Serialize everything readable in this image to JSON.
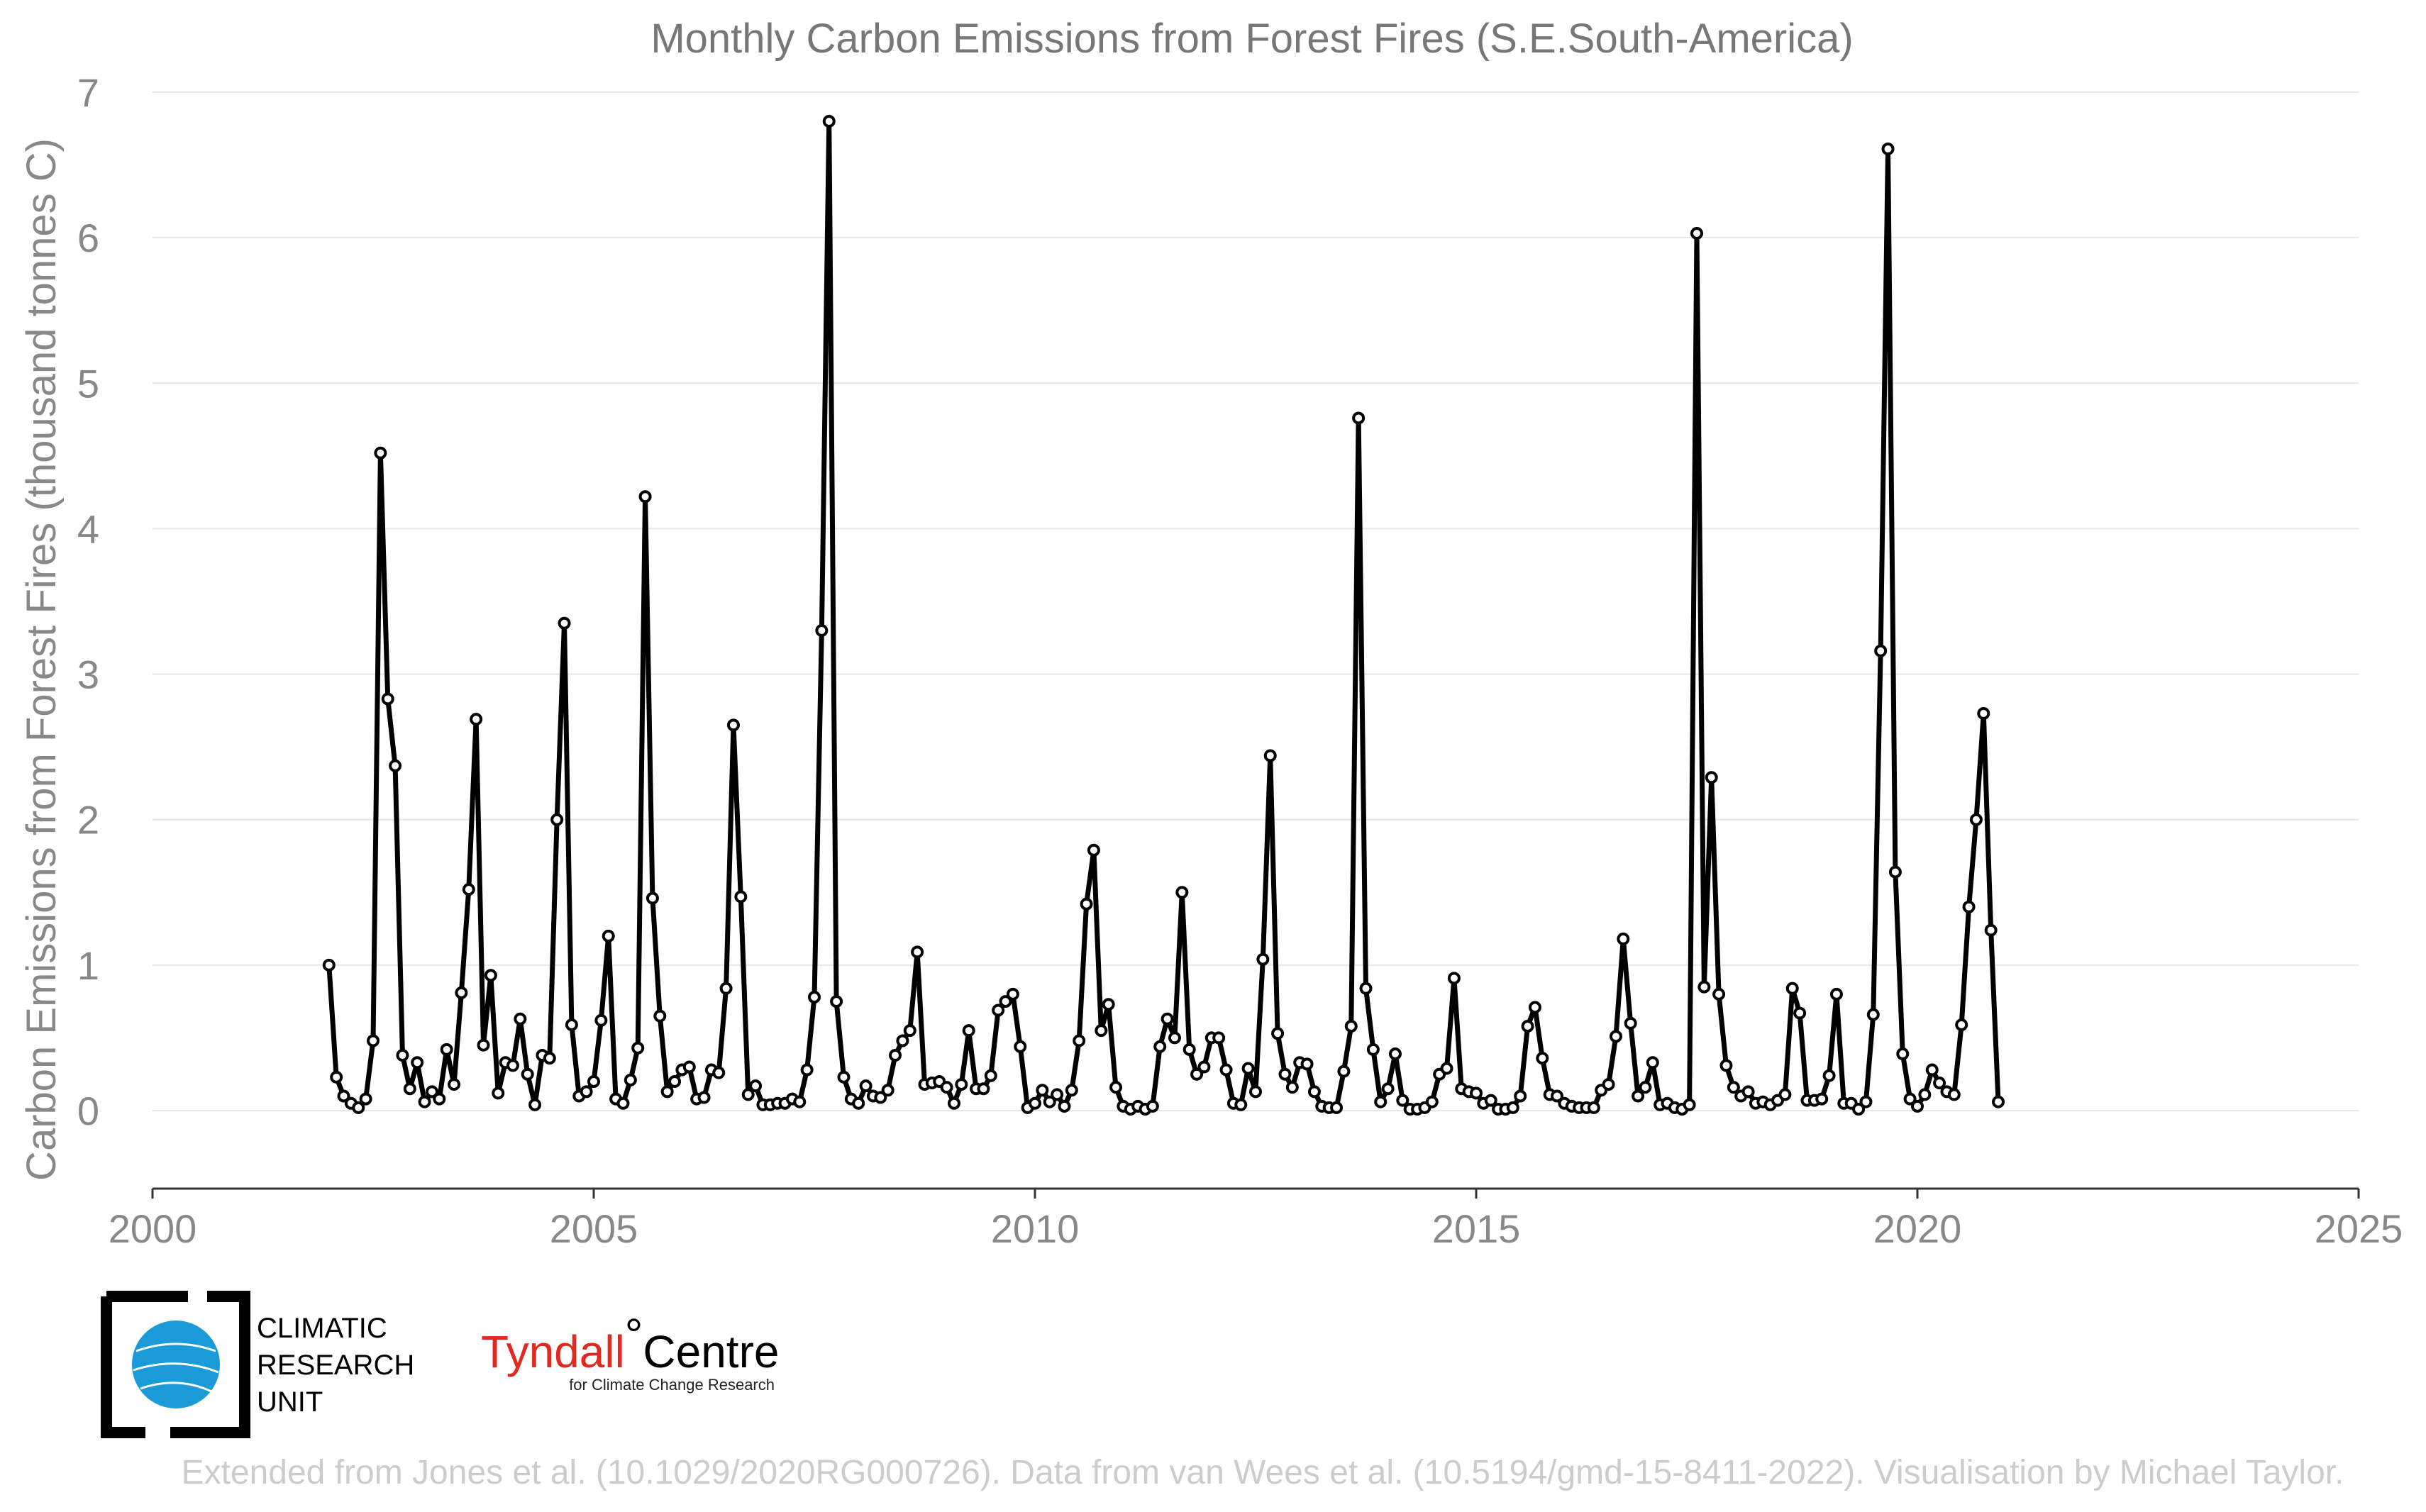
{
  "chart_data": {
    "type": "line",
    "title": "Monthly Carbon Emissions from Forest Fires (S.E.South-America)",
    "xlabel": "",
    "ylabel": "Carbon Emissions from Forest Fires (thousand tonnes C)",
    "xlim": [
      2000,
      2025
    ],
    "ylim": [
      0,
      7
    ],
    "x_ticks": [
      "2000",
      "2005",
      "2010",
      "2015",
      "2020",
      "2025"
    ],
    "y_ticks": [
      "0",
      "1",
      "2",
      "3",
      "4",
      "5",
      "6",
      "7"
    ],
    "grid": "horizontal",
    "legend": "none",
    "series_color": "#000000",
    "x_start": "2002-01",
    "x_step": "monthly",
    "series": [
      {
        "values": [
          1.0,
          0.23,
          0.1,
          0.05,
          0.02,
          0.08,
          0.48,
          4.52,
          2.83,
          2.37,
          0.38,
          0.15,
          0.33,
          0.06,
          0.13,
          0.08,
          0.42,
          0.18,
          0.81,
          1.52,
          2.69,
          0.45,
          0.93,
          0.12,
          0.33,
          0.31,
          0.63,
          0.25,
          0.04,
          0.38,
          0.36,
          2.0,
          3.35,
          0.59,
          0.1,
          0.13,
          0.2,
          0.62,
          1.2,
          0.08,
          0.05,
          0.21,
          0.43,
          4.22,
          1.46,
          0.65,
          0.13,
          0.2,
          0.28,
          0.3,
          0.08,
          0.09,
          0.28,
          0.26,
          0.84,
          2.65,
          1.47,
          0.11,
          0.17,
          0.04,
          0.04,
          0.05,
          0.05,
          0.08,
          0.06,
          0.28,
          0.78,
          3.3,
          6.8,
          0.75,
          0.23,
          0.08,
          0.05,
          0.17,
          0.1,
          0.09,
          0.14,
          0.38,
          0.48,
          0.55,
          1.09,
          0.18,
          0.19,
          0.2,
          0.16,
          0.05,
          0.18,
          0.55,
          0.15,
          0.15,
          0.24,
          0.69,
          0.75,
          0.8,
          0.44,
          0.02,
          0.05,
          0.14,
          0.06,
          0.11,
          0.03,
          0.14,
          0.48,
          1.42,
          1.79,
          0.55,
          0.73,
          0.16,
          0.03,
          0.01,
          0.03,
          0.01,
          0.03,
          0.44,
          0.63,
          0.5,
          1.5,
          0.42,
          0.25,
          0.3,
          0.5,
          0.5,
          0.28,
          0.05,
          0.04,
          0.29,
          0.13,
          1.04,
          2.44,
          0.53,
          0.25,
          0.16,
          0.33,
          0.32,
          0.13,
          0.03,
          0.02,
          0.02,
          0.27,
          0.58,
          4.76,
          0.84,
          0.42,
          0.06,
          0.15,
          0.39,
          0.07,
          0.01,
          0.01,
          0.02,
          0.06,
          0.25,
          0.29,
          0.91,
          0.15,
          0.13,
          0.12,
          0.05,
          0.07,
          0.01,
          0.01,
          0.02,
          0.1,
          0.58,
          0.71,
          0.36,
          0.11,
          0.1,
          0.05,
          0.03,
          0.02,
          0.02,
          0.02,
          0.14,
          0.18,
          0.51,
          1.18,
          0.6,
          0.1,
          0.16,
          0.33,
          0.04,
          0.05,
          0.02,
          0.01,
          0.04,
          6.03,
          0.85,
          2.29,
          0.8,
          0.31,
          0.16,
          0.1,
          0.13,
          0.05,
          0.06,
          0.04,
          0.07,
          0.11,
          0.84,
          0.67,
          0.07,
          0.07,
          0.08,
          0.24,
          0.8,
          0.05,
          0.05,
          0.01,
          0.06,
          0.66,
          3.16,
          6.61,
          1.64,
          0.39,
          0.08,
          0.03,
          0.11,
          0.28,
          0.19,
          0.13,
          0.11,
          0.59,
          1.4,
          2.0,
          2.73,
          1.24,
          0.06
        ]
      }
    ]
  },
  "logos": {
    "cru_text": [
      "CLIMATIC",
      "RESEARCH",
      "UNIT"
    ],
    "tyndall_main": "Tyndall",
    "tyndall_degree": "°",
    "tyndall_centre": "Centre",
    "tyndall_sub": "for Climate Change Research"
  },
  "credit": "Extended from Jones et al. (10.1029/2020RG000726). Data from van Wees et al. (10.5194/gmd-15-8411-2022). Visualisation by Michael Taylor."
}
